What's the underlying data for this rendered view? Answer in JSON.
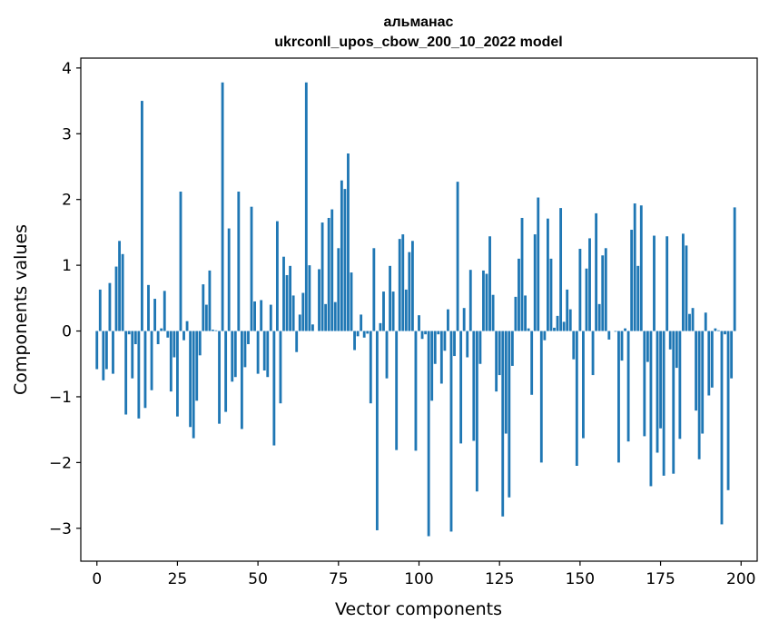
{
  "chart_data": {
    "type": "bar",
    "title_line1": "альманас",
    "title_line2": "ukrconll_upos_cbow_200_10_2022 model",
    "xlabel": "Vector components",
    "ylabel": "Components values",
    "xlim": [
      -5,
      205
    ],
    "ylim": [
      -3.5,
      4.15
    ],
    "xticks": [
      0,
      25,
      50,
      75,
      100,
      125,
      150,
      175,
      200
    ],
    "xtick_labels": [
      "0",
      "25",
      "50",
      "75",
      "100",
      "125",
      "150",
      "175",
      "200"
    ],
    "yticks": [
      -3,
      -2,
      -1,
      0,
      1,
      2,
      3,
      4
    ],
    "ytick_labels": [
      "−3",
      "−2",
      "−1",
      "0",
      "1",
      "2",
      "3",
      "4"
    ],
    "grid": false,
    "bar_color": "#1f77b4",
    "values": [
      -0.58,
      0.63,
      -0.75,
      -0.58,
      0.73,
      -0.65,
      0.98,
      1.37,
      1.17,
      -1.27,
      -0.05,
      -0.72,
      -0.2,
      -1.33,
      3.5,
      -1.17,
      0.7,
      -0.9,
      0.49,
      -0.2,
      0.04,
      0.61,
      -0.1,
      -0.92,
      -0.4,
      -1.3,
      2.12,
      -0.14,
      0.15,
      -1.46,
      -1.63,
      -1.06,
      -0.37,
      0.71,
      0.4,
      0.92,
      0.02,
      0.01,
      -1.41,
      3.78,
      -1.23,
      1.56,
      -0.77,
      -0.7,
      2.12,
      -1.49,
      -0.55,
      -0.2,
      1.89,
      0.45,
      -0.65,
      0.47,
      -0.6,
      -0.7,
      0.4,
      -1.74,
      1.67,
      -1.1,
      1.13,
      0.85,
      0.99,
      0.54,
      -0.32,
      0.25,
      0.58,
      3.78,
      1.0,
      0.1,
      0.0,
      0.94,
      1.65,
      0.41,
      1.72,
      1.85,
      0.44,
      1.26,
      2.29,
      2.16,
      2.7,
      0.89,
      -0.29,
      -0.08,
      0.25,
      -0.1,
      -0.04,
      -1.1,
      1.26,
      -3.03,
      0.12,
      0.6,
      -0.72,
      0.99,
      0.6,
      -1.81,
      1.4,
      1.47,
      0.63,
      1.2,
      1.37,
      -1.82,
      0.24,
      -0.12,
      -0.05,
      -3.12,
      -1.06,
      -0.5,
      -0.05,
      -0.8,
      -0.3,
      0.33,
      -3.05,
      -0.38,
      2.27,
      -1.71,
      0.35,
      -0.4,
      0.93,
      -1.67,
      -2.44,
      -0.5,
      0.92,
      0.87,
      1.44,
      0.55,
      -0.92,
      -0.67,
      -2.82,
      -1.56,
      -2.53,
      -0.53,
      0.52,
      1.1,
      1.72,
      0.54,
      0.04,
      -0.97,
      1.47,
      2.03,
      -2.0,
      -0.14,
      1.71,
      1.1,
      0.05,
      0.23,
      1.87,
      0.14,
      0.63,
      0.33,
      -0.43,
      -2.05,
      1.25,
      -1.63,
      0.95,
      1.41,
      -0.67,
      1.79,
      0.41,
      1.15,
      1.26,
      -0.13,
      0.0,
      -0.01,
      -2.0,
      -0.45,
      0.04,
      -1.68,
      1.54,
      1.94,
      0.99,
      1.91,
      -1.6,
      -0.47,
      -2.36,
      1.45,
      -1.85,
      -1.48,
      -2.2,
      1.44,
      -0.28,
      -2.17,
      -0.56,
      -1.64,
      1.48,
      1.3,
      0.26,
      0.35,
      -1.21,
      -1.95,
      -1.56,
      0.28,
      -0.98,
      -0.86,
      0.04,
      0.01,
      -2.94,
      -0.05,
      -2.42,
      -0.72,
      1.88
    ]
  }
}
